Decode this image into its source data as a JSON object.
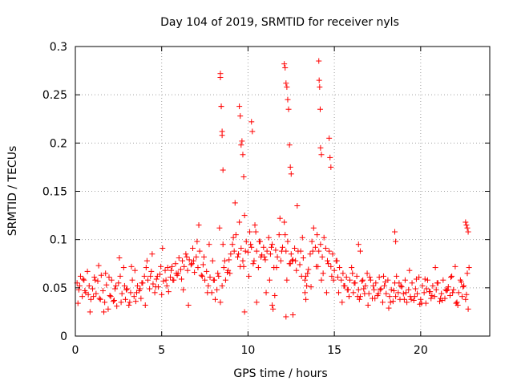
{
  "chart_data": {
    "type": "scatter",
    "title": "Day 104 of 2019, SRMTID for receiver nyls",
    "xlabel": "GPS time / hours",
    "ylabel": "SRMTID / TECUs",
    "xlim": [
      0,
      24
    ],
    "ylim": [
      0,
      0.3
    ],
    "xticks": [
      0,
      5,
      10,
      15,
      20
    ],
    "xtick_labels": [
      "0",
      "5",
      "10",
      "15",
      "20"
    ],
    "yticks": [
      0,
      0.05,
      0.1,
      0.15,
      0.2,
      0.25,
      0.3
    ],
    "ytick_labels": [
      "0",
      "0.05",
      "0.1",
      "0.15",
      "0.2",
      "0.25",
      "0.3"
    ],
    "grid": true,
    "marker": "+",
    "color": "#ff0000",
    "series": [
      {
        "name": "SRMTID",
        "x": [
          0.1,
          0.2,
          0.3,
          0.4,
          0.5,
          0.6,
          0.7,
          0.8,
          0.9,
          1.0,
          1.1,
          1.2,
          1.3,
          1.4,
          1.5,
          1.6,
          1.7,
          1.8,
          1.9,
          2.0,
          2.1,
          2.2,
          2.3,
          2.4,
          2.5,
          2.6,
          2.7,
          2.8,
          2.9,
          3.0,
          3.1,
          3.2,
          3.3,
          3.4,
          3.5,
          3.6,
          3.7,
          3.8,
          3.9,
          4.0,
          4.1,
          4.2,
          4.3,
          4.4,
          4.5,
          4.6,
          4.7,
          4.8,
          4.9,
          5.0,
          5.1,
          5.2,
          5.3,
          5.4,
          5.5,
          5.6,
          5.7,
          5.8,
          5.9,
          6.0,
          6.1,
          6.2,
          6.3,
          6.4,
          6.5,
          6.6,
          6.7,
          6.8,
          6.9,
          7.0,
          7.1,
          7.2,
          7.3,
          7.4,
          7.5,
          7.6,
          7.7,
          7.8,
          7.9,
          8.0,
          8.1,
          8.2,
          8.3,
          8.4,
          8.5,
          8.6,
          8.7,
          8.8,
          8.9,
          9.0,
          9.1,
          9.2,
          9.3,
          9.4,
          9.5,
          9.6,
          9.7,
          9.8,
          9.9,
          10.0,
          10.1,
          10.2,
          10.3,
          10.4,
          10.5,
          10.6,
          10.7,
          10.8,
          10.9,
          11.0,
          11.1,
          11.2,
          11.3,
          11.4,
          11.5,
          11.6,
          11.7,
          11.8,
          11.9,
          12.0,
          12.1,
          12.2,
          12.3,
          12.4,
          12.5,
          12.6,
          12.7,
          12.8,
          12.9,
          13.0,
          13.1,
          13.2,
          13.3,
          13.4,
          13.5,
          13.6,
          13.7,
          13.8,
          13.9,
          14.0,
          14.1,
          14.2,
          14.3,
          14.4,
          14.5,
          14.6,
          14.7,
          14.8,
          14.9,
          15.0,
          15.1,
          15.2,
          15.3,
          15.4,
          15.5,
          15.6,
          15.7,
          15.8,
          15.9,
          16.0,
          16.1,
          16.2,
          16.3,
          16.4,
          16.5,
          16.6,
          16.7,
          16.8,
          16.9,
          17.0,
          17.1,
          17.2,
          17.3,
          17.4,
          17.5,
          17.6,
          17.7,
          17.8,
          17.9,
          18.0,
          18.1,
          18.2,
          18.3,
          18.4,
          18.5,
          18.6,
          18.7,
          18.8,
          18.9,
          19.0,
          19.1,
          19.2,
          19.3,
          19.4,
          19.5,
          19.6,
          19.7,
          19.8,
          19.9,
          20.0,
          20.1,
          20.2,
          20.3,
          20.4,
          20.5,
          20.6,
          20.7,
          20.8,
          20.9,
          21.0,
          21.1,
          21.2,
          21.3,
          21.4,
          21.5,
          21.6,
          21.7,
          21.8,
          21.9,
          22.0,
          22.1,
          22.2,
          22.3,
          22.4,
          22.5,
          22.6,
          22.7,
          22.8,
          0.15,
          0.45,
          0.75,
          1.05,
          1.35,
          1.65,
          1.95,
          2.25,
          2.55,
          2.85,
          3.15,
          3.45,
          3.75,
          4.05,
          4.35,
          4.65,
          4.95,
          5.25,
          5.55,
          5.85,
          6.15,
          6.45,
          6.75,
          7.05,
          7.35,
          7.65,
          7.95,
          8.25,
          8.55,
          8.85,
          9.15,
          9.45,
          9.75,
          10.05,
          10.35,
          10.65,
          10.95,
          11.25,
          11.55,
          11.85,
          12.15,
          12.45,
          12.75,
          13.05,
          13.35,
          13.65,
          13.95,
          14.25,
          14.55,
          14.85,
          15.15,
          15.45,
          15.75,
          16.05,
          16.35,
          16.65,
          16.95,
          17.25,
          17.55,
          17.85,
          18.15,
          18.45,
          18.75,
          19.05,
          19.35,
          19.65,
          19.95,
          20.25,
          20.55,
          20.85,
          21.15,
          21.45,
          21.75,
          22.05,
          22.35,
          22.65,
          0.25,
          0.55,
          0.85,
          1.15,
          1.45,
          1.75,
          2.05,
          2.35,
          2.65,
          2.95,
          3.25,
          3.55,
          3.85,
          4.15,
          4.45,
          4.75,
          5.05,
          5.35,
          5.65,
          5.95,
          6.25,
          6.55,
          6.85,
          7.15,
          7.45,
          7.75,
          8.05,
          8.35,
          8.65,
          8.95,
          9.25,
          9.55,
          9.85,
          10.15,
          10.45,
          10.75,
          11.05,
          11.35,
          11.65,
          11.95,
          12.25,
          12.55,
          12.85,
          13.15,
          13.45,
          13.75,
          14.05,
          14.35,
          14.65,
          14.95,
          15.25,
          15.55,
          15.85,
          16.15,
          16.45,
          16.75,
          17.05,
          17.35,
          17.65,
          17.95,
          18.25,
          18.55,
          18.85,
          19.15,
          19.45,
          19.75,
          20.05,
          20.35,
          20.65,
          20.95,
          21.25,
          21.55,
          21.85,
          22.15,
          22.45,
          22.75,
          8.4,
          8.4,
          8.45,
          8.45,
          8.5,
          8.5,
          8.55,
          9.5,
          9.55,
          9.6,
          9.65,
          9.7,
          9.75,
          10.2,
          10.25,
          12.1,
          12.15,
          12.2,
          12.25,
          12.3,
          12.35,
          12.4,
          12.45,
          12.5,
          14.1,
          14.12,
          14.15,
          14.18,
          14.2,
          14.25,
          14.7,
          14.75,
          14.8,
          22.6,
          22.65,
          22.7,
          22.75,
          18.5,
          18.55,
          16.4,
          16.5,
          12.2,
          12.6,
          9.8,
          11.4,
          11.45,
          13.3,
          13.35,
          10.5
        ],
        "y": [
          0.055,
          0.048,
          0.062,
          0.041,
          0.058,
          0.045,
          0.067,
          0.052,
          0.038,
          0.049,
          0.061,
          0.044,
          0.057,
          0.039,
          0.063,
          0.047,
          0.035,
          0.053,
          0.028,
          0.042,
          0.058,
          0.036,
          0.049,
          0.031,
          0.055,
          0.062,
          0.044,
          0.071,
          0.038,
          0.049,
          0.032,
          0.045,
          0.058,
          0.041,
          0.036,
          0.052,
          0.047,
          0.039,
          0.055,
          0.062,
          0.071,
          0.058,
          0.049,
          0.067,
          0.054,
          0.045,
          0.059,
          0.051,
          0.064,
          0.043,
          0.057,
          0.068,
          0.052,
          0.046,
          0.061,
          0.072,
          0.058,
          0.075,
          0.063,
          0.081,
          0.069,
          0.078,
          0.072,
          0.085,
          0.068,
          0.079,
          0.074,
          0.091,
          0.066,
          0.082,
          0.071,
          0.088,
          0.063,
          0.074,
          0.058,
          0.067,
          0.052,
          0.061,
          0.045,
          0.058,
          0.038,
          0.048,
          0.062,
          0.035,
          0.052,
          0.071,
          0.058,
          0.066,
          0.079,
          0.085,
          0.095,
          0.088,
          0.105,
          0.082,
          0.118,
          0.091,
          0.078,
          0.125,
          0.098,
          0.087,
          0.108,
          0.092,
          0.075,
          0.115,
          0.088,
          0.071,
          0.098,
          0.084,
          0.092,
          0.079,
          0.088,
          0.102,
          0.085,
          0.095,
          0.071,
          0.089,
          0.082,
          0.105,
          0.078,
          0.092,
          0.118,
          0.088,
          0.098,
          0.075,
          0.085,
          0.079,
          0.091,
          0.068,
          0.088,
          0.074,
          0.062,
          0.081,
          0.058,
          0.052,
          0.069,
          0.085,
          0.098,
          0.112,
          0.092,
          0.105,
          0.088,
          0.095,
          0.082,
          0.102,
          0.091,
          0.078,
          0.088,
          0.072,
          0.085,
          0.068,
          0.078,
          0.061,
          0.071,
          0.058,
          0.065,
          0.052,
          0.061,
          0.048,
          0.058,
          0.071,
          0.045,
          0.055,
          0.062,
          0.048,
          0.041,
          0.057,
          0.049,
          0.052,
          0.065,
          0.044,
          0.058,
          0.039,
          0.048,
          0.055,
          0.042,
          0.061,
          0.049,
          0.035,
          0.052,
          0.044,
          0.058,
          0.041,
          0.048,
          0.036,
          0.055,
          0.062,
          0.045,
          0.038,
          0.051,
          0.044,
          0.058,
          0.035,
          0.048,
          0.041,
          0.055,
          0.037,
          0.049,
          0.044,
          0.061,
          0.038,
          0.052,
          0.045,
          0.034,
          0.058,
          0.046,
          0.039,
          0.052,
          0.041,
          0.048,
          0.055,
          0.036,
          0.044,
          0.058,
          0.039,
          0.047,
          0.051,
          0.042,
          0.062,
          0.048,
          0.072,
          0.035,
          0.045,
          0.058,
          0.041,
          0.052,
          0.038,
          0.065,
          0.071,
          0.034,
          0.059,
          0.043,
          0.041,
          0.073,
          0.025,
          0.061,
          0.037,
          0.081,
          0.052,
          0.035,
          0.068,
          0.049,
          0.032,
          0.062,
          0.051,
          0.072,
          0.058,
          0.068,
          0.065,
          0.059,
          0.082,
          0.075,
          0.098,
          0.062,
          0.045,
          0.078,
          0.065,
          0.095,
          0.068,
          0.102,
          0.085,
          0.072,
          0.062,
          0.078,
          0.098,
          0.082,
          0.058,
          0.042,
          0.122,
          0.105,
          0.075,
          0.078,
          0.088,
          0.062,
          0.051,
          0.072,
          0.058,
          0.045,
          0.062,
          0.078,
          0.035,
          0.048,
          0.065,
          0.041,
          0.058,
          0.032,
          0.052,
          0.044,
          0.062,
          0.029,
          0.047,
          0.055,
          0.038,
          0.068,
          0.041,
          0.033,
          0.059,
          0.046,
          0.071,
          0.039,
          0.048,
          0.061,
          0.034,
          0.056,
          0.043,
          0.052,
          0.047,
          0.025,
          0.058,
          0.038,
          0.065,
          0.041,
          0.052,
          0.035,
          0.048,
          0.072,
          0.045,
          0.055,
          0.078,
          0.085,
          0.062,
          0.091,
          0.071,
          0.058,
          0.065,
          0.048,
          0.032,
          0.078,
          0.115,
          0.082,
          0.095,
          0.058,
          0.112,
          0.078,
          0.065,
          0.138,
          0.072,
          0.088,
          0.095,
          0.108,
          0.082,
          0.045,
          0.092,
          0.071,
          0.088,
          0.058,
          0.078,
          0.135,
          0.102,
          0.065,
          0.088,
          0.072,
          0.065,
          0.075,
          0.058,
          0.045,
          0.052,
          0.041,
          0.055,
          0.038,
          0.044,
          0.061,
          0.039,
          0.048,
          0.056,
          0.035,
          0.041,
          0.052,
          0.045,
          0.038,
          0.059,
          0.034,
          0.049,
          0.042,
          0.055,
          0.037,
          0.048,
          0.045,
          0.032,
          0.051,
          0.028,
          0.272,
          0.268,
          0.238,
          0.238,
          0.208,
          0.212,
          0.172,
          0.238,
          0.228,
          0.198,
          0.202,
          0.188,
          0.165,
          0.222,
          0.212,
          0.282,
          0.278,
          0.262,
          0.258,
          0.245,
          0.235,
          0.198,
          0.175,
          0.168,
          0.285,
          0.265,
          0.258,
          0.235,
          0.195,
          0.188,
          0.205,
          0.185,
          0.175,
          0.118,
          0.115,
          0.112,
          0.108,
          0.108,
          0.098,
          0.095,
          0.088,
          0.02,
          0.022,
          0.025,
          0.032,
          0.028,
          0.045,
          0.038,
          0.035
        ]
      }
    ]
  }
}
